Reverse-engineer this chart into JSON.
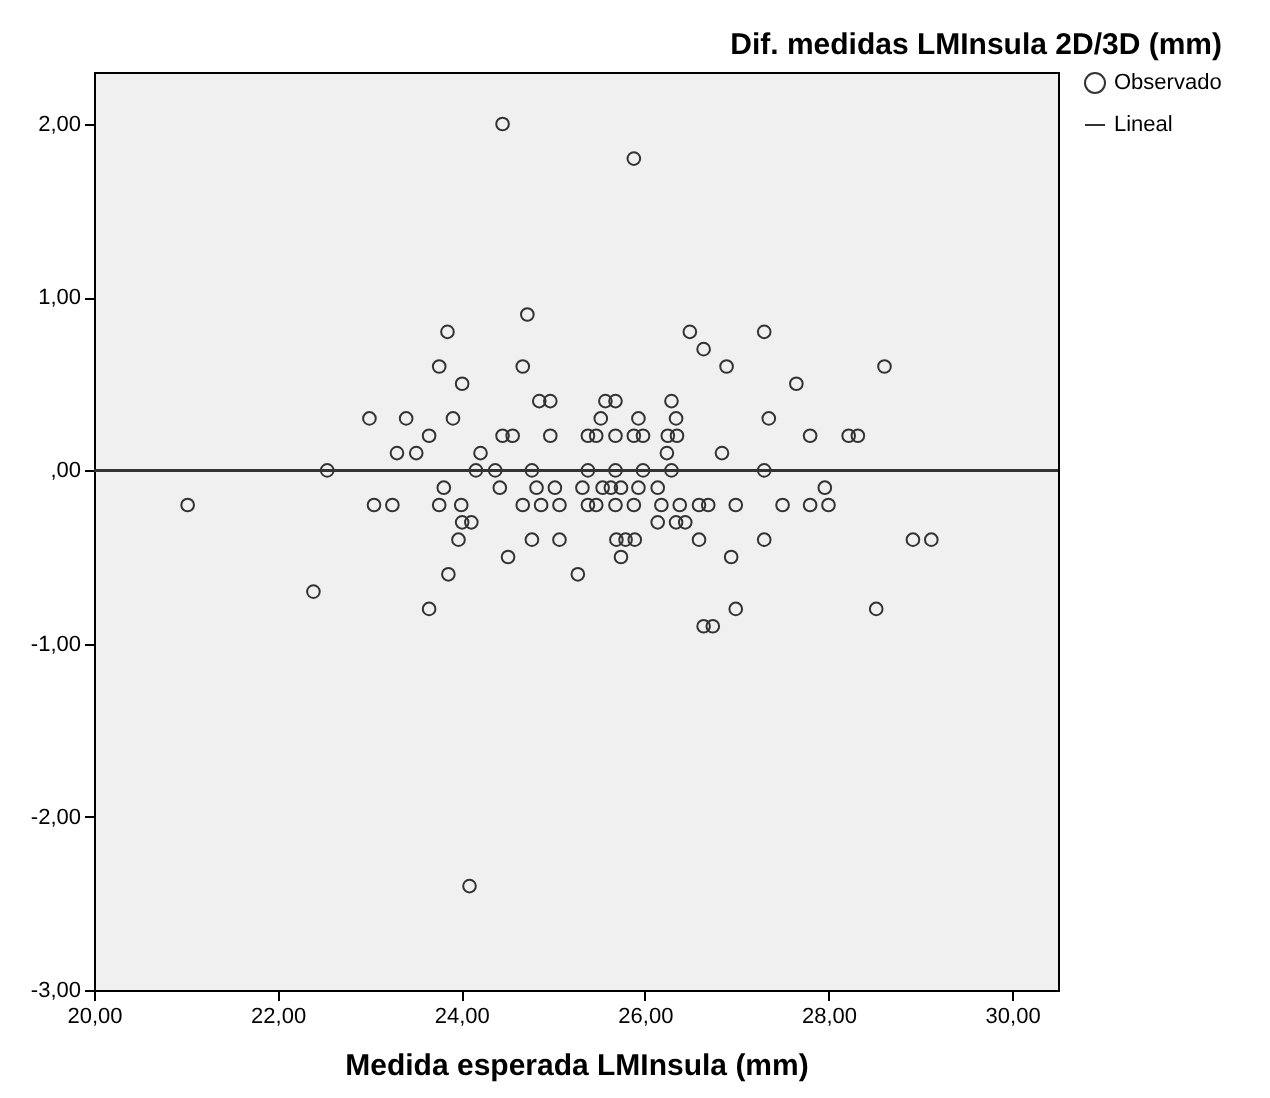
{
  "chart_data": {
    "type": "scatter",
    "title": "Dif. medidas LMInsula 2D/3D (mm)",
    "xlabel": "Medida esperada LMInsula (mm)",
    "xlim": [
      20,
      30.5
    ],
    "ylim": [
      -3,
      2.3
    ],
    "xticks": [
      {
        "value": 20,
        "label": "20,00"
      },
      {
        "value": 22,
        "label": "22,00"
      },
      {
        "value": 24,
        "label": "24,00"
      },
      {
        "value": 26,
        "label": "26,00"
      },
      {
        "value": 28,
        "label": "28,00"
      },
      {
        "value": 30,
        "label": "30,00"
      }
    ],
    "yticks": [
      {
        "value": -3,
        "label": "-3,00"
      },
      {
        "value": -2,
        "label": "-2,00"
      },
      {
        "value": -1,
        "label": "-1,00"
      },
      {
        "value": 0,
        "label": ",00"
      },
      {
        "value": 1,
        "label": "1,00"
      },
      {
        "value": 2,
        "label": "2,00"
      }
    ],
    "grid": false,
    "legend": "top right",
    "series": [
      {
        "name": "Observado",
        "marker": "circle",
        "color": "#333333",
        "x": [
          24.45,
          24.72,
          23.85,
          23.76,
          24.67,
          24.01,
          24.85,
          24.97,
          23.0,
          23.4,
          23.91,
          23.65,
          24.45,
          24.56,
          24.97,
          23.3,
          23.51,
          24.21,
          22.54,
          24.16,
          24.37,
          24.77,
          21.02,
          23.81,
          24.42,
          24.82,
          25.02,
          23.05,
          23.25,
          23.76,
          24.0,
          24.67,
          24.87,
          25.07,
          24.01,
          24.11,
          23.97,
          24.77,
          25.07,
          24.51,
          23.86,
          22.39,
          23.65,
          24.09,
          25.88,
          26.49,
          27.3,
          26.64,
          26.89,
          28.61,
          27.65,
          25.57,
          25.68,
          26.29,
          25.52,
          25.93,
          26.34,
          27.35,
          25.38,
          25.47,
          25.68,
          25.88,
          25.98,
          26.25,
          26.35,
          27.8,
          28.22,
          28.32,
          26.24,
          26.84,
          25.38,
          25.68,
          25.98,
          26.29,
          27.3,
          25.32,
          25.54,
          25.63,
          25.74,
          25.93,
          26.14,
          27.96,
          25.38,
          25.47,
          25.68,
          25.88,
          26.18,
          26.38,
          26.59,
          26.69,
          26.99,
          27.5,
          27.8,
          28.0,
          26.14,
          26.34,
          26.44,
          25.69,
          25.79,
          25.89,
          26.59,
          27.3,
          28.92,
          29.12,
          25.74,
          26.94,
          25.27,
          26.99,
          28.52,
          26.64,
          26.74
        ],
        "values": [
          2.0,
          0.9,
          0.8,
          0.6,
          0.6,
          0.5,
          0.4,
          0.4,
          0.3,
          0.3,
          0.3,
          0.2,
          0.2,
          0.2,
          0.2,
          0.1,
          0.1,
          0.1,
          0.0,
          0.0,
          0.0,
          0.0,
          -0.2,
          -0.1,
          -0.1,
          -0.1,
          -0.1,
          -0.2,
          -0.2,
          -0.2,
          -0.2,
          -0.2,
          -0.2,
          -0.2,
          -0.3,
          -0.3,
          -0.4,
          -0.4,
          -0.4,
          -0.5,
          -0.6,
          -0.7,
          -0.8,
          -2.4,
          1.8,
          0.8,
          0.8,
          0.7,
          0.6,
          0.6,
          0.5,
          0.4,
          0.4,
          0.4,
          0.3,
          0.3,
          0.3,
          0.3,
          0.2,
          0.2,
          0.2,
          0.2,
          0.2,
          0.2,
          0.2,
          0.2,
          0.2,
          0.2,
          0.1,
          0.1,
          0.0,
          0.0,
          0.0,
          0.0,
          0.0,
          -0.1,
          -0.1,
          -0.1,
          -0.1,
          -0.1,
          -0.1,
          -0.1,
          -0.2,
          -0.2,
          -0.2,
          -0.2,
          -0.2,
          -0.2,
          -0.2,
          -0.2,
          -0.2,
          -0.2,
          -0.2,
          -0.2,
          -0.3,
          -0.3,
          -0.3,
          -0.4,
          -0.4,
          -0.4,
          -0.4,
          -0.4,
          -0.4,
          -0.4,
          -0.5,
          -0.5,
          -0.6,
          -0.8,
          -0.8,
          -0.9,
          -0.9
        ]
      },
      {
        "name": "Lineal",
        "type": "line",
        "line_style": "solid",
        "color": "#333333",
        "x": [
          20,
          30.5
        ],
        "values": [
          0,
          0
        ]
      }
    ]
  }
}
